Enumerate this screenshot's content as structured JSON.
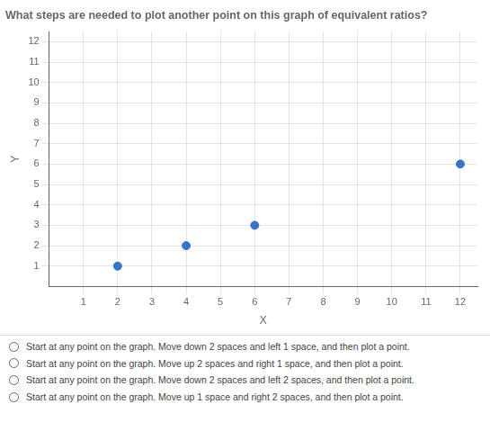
{
  "chart_data": {
    "type": "scatter",
    "title": "What steps are needed to plot another point on this graph of equivalent ratios?",
    "x": [
      2,
      4,
      6,
      12
    ],
    "values": [
      1,
      2,
      3,
      6
    ],
    "color": "#3a72c4",
    "xlabel": "X",
    "ylabel": "Y",
    "xlim": [
      0,
      12.5
    ],
    "ylim": [
      0,
      12.5
    ],
    "xticks": [
      1,
      2,
      3,
      4,
      5,
      6,
      7,
      8,
      9,
      10,
      11,
      12
    ],
    "yticks": [
      1,
      2,
      3,
      4,
      5,
      6,
      7,
      8,
      9,
      10,
      11,
      12
    ],
    "grid": true,
    "annotations": [
      "Start at any point on the graph. Move down 2 spaces and left 1 space, and then plot a point.",
      "Start at any point on the graph. Move up 2 spaces and right 1 space, and then plot a point.",
      "Start at any point on the graph. Move down 2 spaces and left 2 spaces, and then plot a point.",
      "Start at any point on the graph. Move up 1 space and right 2 spaces, and then plot a point."
    ]
  }
}
